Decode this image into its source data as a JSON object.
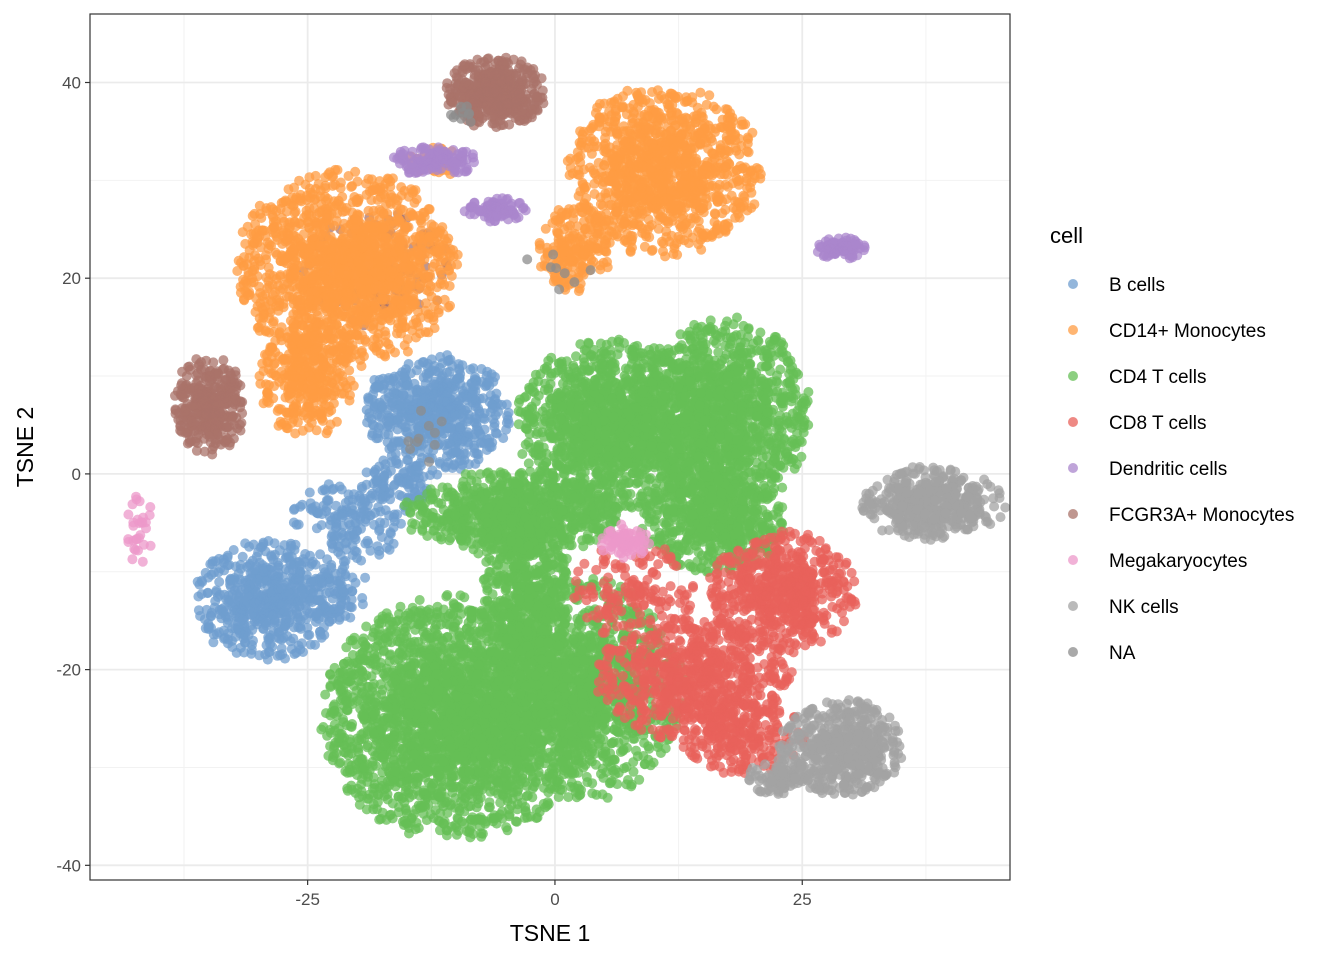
{
  "chart_data": {
    "type": "scatter",
    "title": "",
    "xlabel": "TSNE 1",
    "ylabel": "TSNE 2",
    "xlim": [
      -47,
      46
    ],
    "ylim": [
      -41.5,
      47
    ],
    "xticks": [
      -25,
      0,
      25
    ],
    "yticks": [
      -40,
      -20,
      0,
      20,
      40
    ],
    "x_tick_labels": [
      "-25",
      "0",
      "25"
    ],
    "y_tick_labels": [
      "-40",
      "-20",
      "0",
      "20",
      "40"
    ],
    "grid": true,
    "legend": {
      "title": "cell",
      "position": "right"
    },
    "series": [
      {
        "name": "B cells",
        "color": "#6f9ecf",
        "clusters": [
          {
            "cx": -12,
            "cy": 6,
            "rx": 6,
            "ry": 5,
            "n": 600
          },
          {
            "cx": -29,
            "cy": -13,
            "rx": 6,
            "ry": 5,
            "n": 560
          },
          {
            "cx": -21,
            "cy": -5,
            "rx": 5,
            "ry": 3.5,
            "n": 160
          },
          {
            "cx": -16,
            "cy": -1,
            "rx": 3,
            "ry": 2.5,
            "n": 90
          },
          {
            "cx": -22,
            "cy": -12,
            "rx": 2.5,
            "ry": 2.5,
            "n": 60
          }
        ]
      },
      {
        "name": "CD14+ Monocytes",
        "color": "#ff9c43",
        "clusters": [
          {
            "cx": -21,
            "cy": 21,
            "rx": 9,
            "ry": 8,
            "n": 1500
          },
          {
            "cx": -25,
            "cy": 10,
            "rx": 4,
            "ry": 5,
            "n": 360
          },
          {
            "cx": 11,
            "cy": 31,
            "rx": 8,
            "ry": 7,
            "n": 1100
          },
          {
            "cx": 2,
            "cy": 23,
            "rx": 3,
            "ry": 3.5,
            "n": 200
          },
          {
            "cx": -12,
            "cy": 32,
            "rx": 2.5,
            "ry": 1.2,
            "n": 40
          }
        ]
      },
      {
        "name": "CD4 T cells",
        "color": "#66bf55",
        "clusters": [
          {
            "cx": -10,
            "cy": -25,
            "rx": 11,
            "ry": 10,
            "n": 2600
          },
          {
            "cx": 3,
            "cy": -22,
            "rx": 8,
            "ry": 9,
            "n": 1200
          },
          {
            "cx": 6,
            "cy": 5,
            "rx": 8,
            "ry": 7,
            "n": 1400
          },
          {
            "cx": 17,
            "cy": 6,
            "rx": 7,
            "ry": 8,
            "n": 1200
          },
          {
            "cx": 16,
            "cy": -5,
            "rx": 6,
            "ry": 4,
            "n": 600
          },
          {
            "cx": -4,
            "cy": -4,
            "rx": 9,
            "ry": 3.5,
            "n": 800
          },
          {
            "cx": -3,
            "cy": -12,
            "rx": 3.5,
            "ry": 9,
            "n": 600
          }
        ]
      },
      {
        "name": "CD8 T cells",
        "color": "#e8615b",
        "clusters": [
          {
            "cx": 14,
            "cy": -21,
            "rx": 8,
            "ry": 5,
            "n": 700
          },
          {
            "cx": 23,
            "cy": -12,
            "rx": 6,
            "ry": 5,
            "n": 600
          },
          {
            "cx": 19,
            "cy": -27,
            "rx": 5,
            "ry": 3,
            "n": 200
          },
          {
            "cx": 8,
            "cy": -12,
            "rx": 5,
            "ry": 4,
            "n": 150
          }
        ]
      },
      {
        "name": "Dendritic cells",
        "color": "#a985cc",
        "clusters": [
          {
            "cx": -12,
            "cy": 32,
            "rx": 3.5,
            "ry": 1.3,
            "n": 120
          },
          {
            "cx": -6,
            "cy": 27,
            "rx": 2.5,
            "ry": 1,
            "n": 90
          },
          {
            "cx": 29,
            "cy": 23,
            "rx": 2,
            "ry": 1,
            "n": 70
          }
        ]
      },
      {
        "name": "FCGR3A+ Monocytes",
        "color": "#a9736a",
        "clusters": [
          {
            "cx": -6,
            "cy": 39,
            "rx": 4,
            "ry": 3,
            "n": 500
          },
          {
            "cx": -35,
            "cy": 7,
            "rx": 3,
            "ry": 4,
            "n": 350
          },
          {
            "cx": -18,
            "cy": 21,
            "rx": 6,
            "ry": 5,
            "n": 150
          }
        ]
      },
      {
        "name": "Megakaryocytes",
        "color": "#ec98c9",
        "clusters": [
          {
            "cx": 7,
            "cy": -7,
            "rx": 2,
            "ry": 1.5,
            "n": 80
          },
          {
            "cx": -42,
            "cy": -6,
            "rx": 1.2,
            "ry": 3,
            "n": 30
          }
        ]
      },
      {
        "name": "NK cells",
        "color": "#a3a3a3",
        "clusters": [
          {
            "cx": 29,
            "cy": -28,
            "rx": 5,
            "ry": 4,
            "n": 500
          },
          {
            "cx": 38,
            "cy": -3,
            "rx": 6,
            "ry": 3,
            "n": 450
          },
          {
            "cx": 23,
            "cy": -31,
            "rx": 3,
            "ry": 1.5,
            "n": 90
          }
        ]
      },
      {
        "name": "NA",
        "color": "#8c8c8c",
        "clusters": [
          {
            "cx": -9,
            "cy": 37,
            "rx": 1.5,
            "ry": 1.2,
            "n": 10
          },
          {
            "cx": 0,
            "cy": 21,
            "rx": 3,
            "ry": 2,
            "n": 8
          },
          {
            "cx": -14,
            "cy": 3,
            "rx": 3,
            "ry": 3,
            "n": 10
          }
        ]
      }
    ]
  }
}
